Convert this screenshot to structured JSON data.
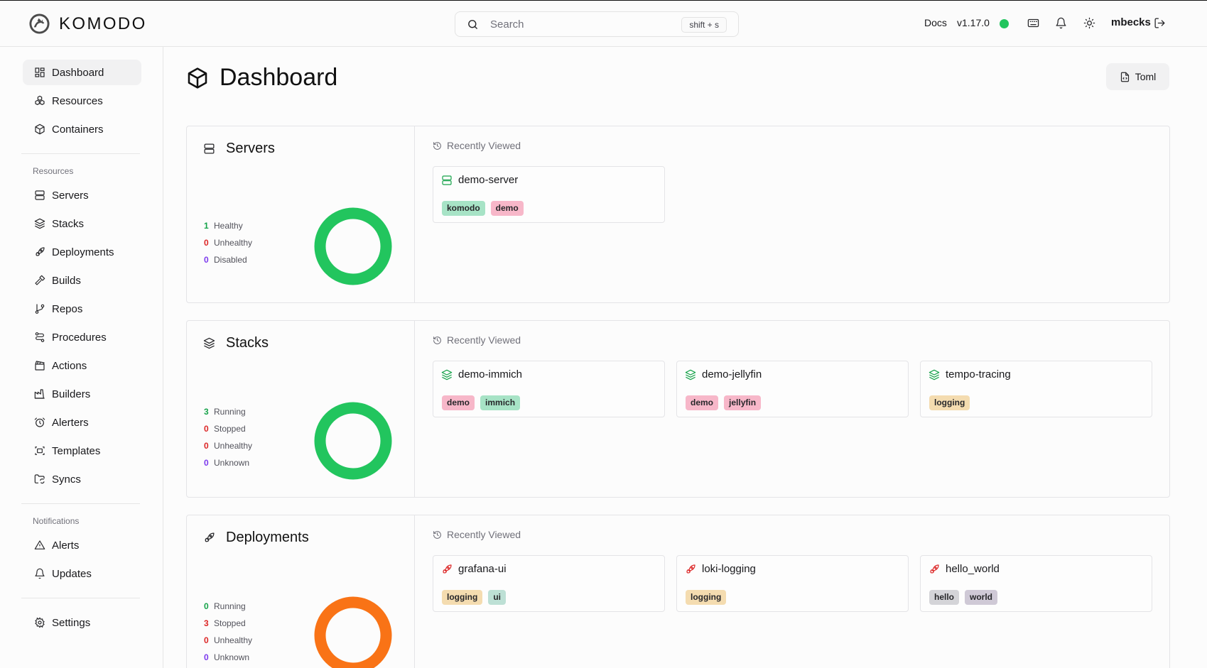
{
  "header": {
    "brand": "KOMODO",
    "search_placeholder": "Search",
    "search_shortcut": "shift + s",
    "docs_label": "Docs",
    "version": "v1.17.0",
    "status_color": "#22c55e",
    "username": "mbecks",
    "icons": [
      "search-icon",
      "keyboard-icon",
      "bell-icon",
      "sun-icon",
      "logout-icon"
    ]
  },
  "sidebar": {
    "top_items": [
      "Dashboard",
      "Resources",
      "Containers"
    ],
    "resources_section": "Resources",
    "resource_items": [
      "Servers",
      "Stacks",
      "Deployments",
      "Builds",
      "Repos",
      "Procedures",
      "Actions",
      "Builders",
      "Alerters",
      "Templates",
      "Syncs"
    ],
    "notifications_section": "Notifications",
    "notification_items": [
      "Alerts",
      "Updates"
    ],
    "settings_label": "Settings"
  },
  "main": {
    "title": "Dashboard",
    "toml_button": "Toml",
    "recently_viewed_label": "Recently Viewed",
    "sections": [
      {
        "title": "Servers",
        "donut_color": "#22c55e",
        "stats": [
          {
            "count": "1",
            "label": "Healthy",
            "color": "#16a34a"
          },
          {
            "count": "0",
            "label": "Unhealthy",
            "color": "#dc2626"
          },
          {
            "count": "0",
            "label": "Disabled",
            "color": "#7c3aed"
          }
        ],
        "cards": [
          {
            "name": "demo-server",
            "icon": "server-icon",
            "icon_color": "#16a34a",
            "tags": [
              {
                "label": "komodo",
                "color": "#a7e3c6"
              },
              {
                "label": "demo",
                "color": "#f7b7c9"
              }
            ]
          }
        ]
      },
      {
        "title": "Stacks",
        "donut_color": "#22c55e",
        "stats": [
          {
            "count": "3",
            "label": "Running",
            "color": "#16a34a"
          },
          {
            "count": "0",
            "label": "Stopped",
            "color": "#dc2626"
          },
          {
            "count": "0",
            "label": "Unhealthy",
            "color": "#dc2626"
          },
          {
            "count": "0",
            "label": "Unknown",
            "color": "#7c3aed"
          }
        ],
        "cards": [
          {
            "name": "demo-immich",
            "icon": "layers-icon",
            "icon_color": "#16a34a",
            "tags": [
              {
                "label": "demo",
                "color": "#f7b7c9"
              },
              {
                "label": "immich",
                "color": "#a7e3c6"
              }
            ]
          },
          {
            "name": "demo-jellyfin",
            "icon": "layers-icon",
            "icon_color": "#16a34a",
            "tags": [
              {
                "label": "demo",
                "color": "#f7b7c9"
              },
              {
                "label": "jellyfin",
                "color": "#f7b7c9"
              }
            ]
          },
          {
            "name": "tempo-tracing",
            "icon": "layers-icon",
            "icon_color": "#16a34a",
            "tags": [
              {
                "label": "logging",
                "color": "#f4dcb0"
              }
            ]
          }
        ]
      },
      {
        "title": "Deployments",
        "donut_color": "#f97316",
        "stats": [
          {
            "count": "0",
            "label": "Running",
            "color": "#16a34a"
          },
          {
            "count": "3",
            "label": "Stopped",
            "color": "#dc2626"
          },
          {
            "count": "0",
            "label": "Unhealthy",
            "color": "#dc2626"
          },
          {
            "count": "0",
            "label": "Unknown",
            "color": "#7c3aed"
          }
        ],
        "cards": [
          {
            "name": "grafana-ui",
            "icon": "rocket-icon",
            "icon_color": "#dc2626",
            "tags": [
              {
                "label": "logging",
                "color": "#f4dcb0"
              },
              {
                "label": "ui",
                "color": "#bde0d5"
              }
            ]
          },
          {
            "name": "loki-logging",
            "icon": "rocket-icon",
            "icon_color": "#dc2626",
            "tags": [
              {
                "label": "logging",
                "color": "#f4dcb0"
              }
            ]
          },
          {
            "name": "hello_world",
            "icon": "rocket-icon",
            "icon_color": "#dc2626",
            "tags": [
              {
                "label": "hello",
                "color": "#d4d4d8"
              },
              {
                "label": "world",
                "color": "#cfc9d6"
              }
            ]
          }
        ]
      }
    ]
  }
}
